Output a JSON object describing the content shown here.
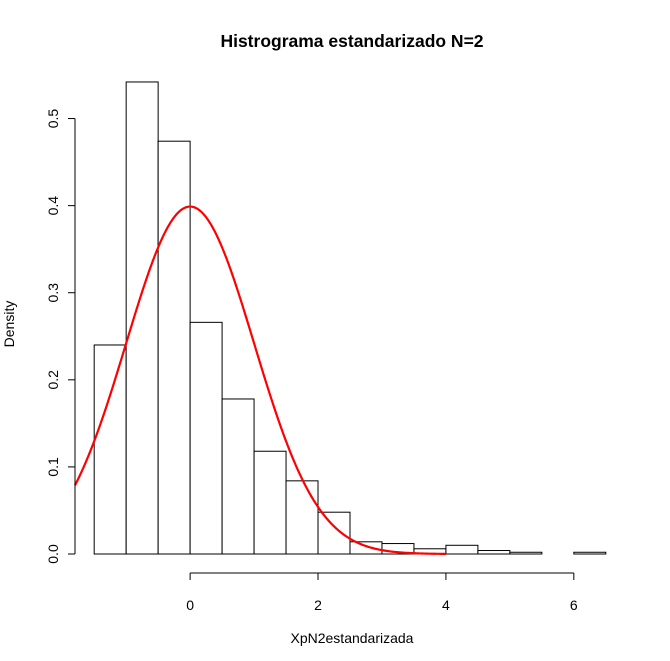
{
  "chart_data": {
    "type": "bar",
    "title": "Histrograma estandarizado N=2",
    "xlabel": "XpN2estandarizada",
    "ylabel": "Density",
    "x_ticks": [
      0,
      2,
      4,
      6
    ],
    "y_ticks": [
      "0.0",
      "0.1",
      "0.2",
      "0.3",
      "0.4",
      "0.5"
    ],
    "xlim": [
      -1.8,
      6.55
    ],
    "ylim": [
      0,
      0.55
    ],
    "bins": [
      {
        "x0": -1.5,
        "x1": -1.0,
        "density": 0.24
      },
      {
        "x0": -1.0,
        "x1": -0.5,
        "density": 0.542
      },
      {
        "x0": -0.5,
        "x1": 0.0,
        "density": 0.474
      },
      {
        "x0": 0.0,
        "x1": 0.5,
        "density": 0.266
      },
      {
        "x0": 0.5,
        "x1": 1.0,
        "density": 0.178
      },
      {
        "x0": 1.0,
        "x1": 1.5,
        "density": 0.118
      },
      {
        "x0": 1.5,
        "x1": 2.0,
        "density": 0.084
      },
      {
        "x0": 2.0,
        "x1": 2.5,
        "density": 0.048
      },
      {
        "x0": 2.5,
        "x1": 3.0,
        "density": 0.014
      },
      {
        "x0": 3.0,
        "x1": 3.5,
        "density": 0.012
      },
      {
        "x0": 3.5,
        "x1": 4.0,
        "density": 0.006
      },
      {
        "x0": 4.0,
        "x1": 4.5,
        "density": 0.01
      },
      {
        "x0": 4.5,
        "x1": 5.0,
        "density": 0.004
      },
      {
        "x0": 5.0,
        "x1": 5.5,
        "density": 0.002
      },
      {
        "x0": 5.5,
        "x1": 6.0,
        "density": 0.0
      },
      {
        "x0": 6.0,
        "x1": 6.5,
        "density": 0.002
      }
    ],
    "curve": {
      "kind": "normal-density",
      "mean": 0,
      "sd": 1,
      "x_from": -1.8,
      "x_to": 4,
      "color": "#ff0000"
    },
    "bar_fill": "#ffffff",
    "bar_stroke": "#000000",
    "grid": false,
    "legend": "none"
  }
}
